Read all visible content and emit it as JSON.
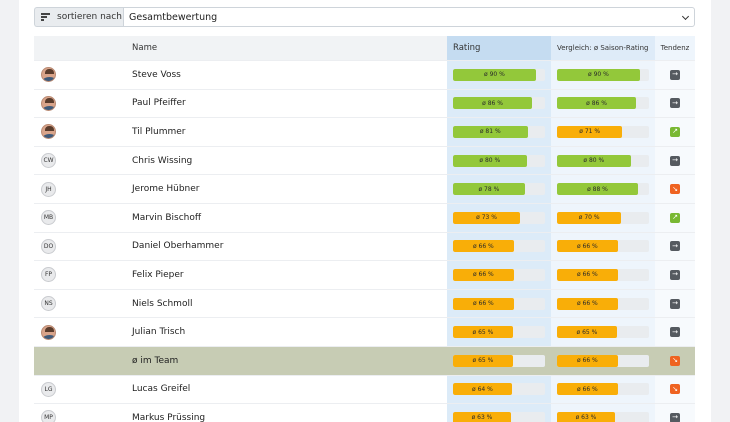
{
  "sort": {
    "label": "sortieren nach",
    "selected": "Gesamtbewertung"
  },
  "headers": {
    "name": "Name",
    "rating": "Rating",
    "compare": "Vergleich: ø Saison-Rating",
    "trend": "Tendenz"
  },
  "colors": {
    "green": "#93c83a",
    "orange": "#f9ae08",
    "trend_up": "#79b833",
    "trend_down": "#ef6321",
    "trend_flat": "#555a60"
  },
  "rows": [
    {
      "type": "player",
      "avatar": "photo",
      "initials": "",
      "name": "Steve Voss",
      "rating": 90,
      "rating_label": "ø 90 %",
      "rating_color": "green",
      "compare": 90,
      "compare_label": "ø 90 %",
      "compare_color": "green",
      "trend": "flat",
      "trend_icon": "arrow-right-icon"
    },
    {
      "type": "player",
      "avatar": "photo",
      "initials": "",
      "name": "Paul Pfeiffer",
      "rating": 86,
      "rating_label": "ø 86 %",
      "rating_color": "green",
      "compare": 86,
      "compare_label": "ø 86 %",
      "compare_color": "green",
      "trend": "flat",
      "trend_icon": "arrow-right-icon"
    },
    {
      "type": "player",
      "avatar": "photo",
      "initials": "",
      "name": "Til Plummer",
      "rating": 81,
      "rating_label": "ø 81 %",
      "rating_color": "green",
      "compare": 71,
      "compare_label": "ø 71 %",
      "compare_color": "orange",
      "trend": "up",
      "trend_icon": "arrow-up-right-icon"
    },
    {
      "type": "player",
      "avatar": "initials",
      "initials": "CW",
      "name": "Chris Wissing",
      "rating": 80,
      "rating_label": "ø 80 %",
      "rating_color": "green",
      "compare": 80,
      "compare_label": "ø 80 %",
      "compare_color": "green",
      "trend": "flat",
      "trend_icon": "arrow-right-icon"
    },
    {
      "type": "player",
      "avatar": "initials",
      "initials": "JH",
      "name": "Jerome Hübner",
      "rating": 78,
      "rating_label": "ø 78 %",
      "rating_color": "green",
      "compare": 88,
      "compare_label": "ø 88 %",
      "compare_color": "green",
      "trend": "down",
      "trend_icon": "arrow-down-right-icon"
    },
    {
      "type": "player",
      "avatar": "initials",
      "initials": "MB",
      "name": "Marvin Bischoff",
      "rating": 73,
      "rating_label": "ø 73 %",
      "rating_color": "orange",
      "compare": 70,
      "compare_label": "ø 70 %",
      "compare_color": "orange",
      "trend": "up",
      "trend_icon": "arrow-up-right-icon"
    },
    {
      "type": "player",
      "avatar": "initials",
      "initials": "DO",
      "name": "Daniel Oberhammer",
      "rating": 66,
      "rating_label": "ø 66 %",
      "rating_color": "orange",
      "compare": 66,
      "compare_label": "ø 66 %",
      "compare_color": "orange",
      "trend": "flat",
      "trend_icon": "arrow-right-icon"
    },
    {
      "type": "player",
      "avatar": "initials",
      "initials": "FP",
      "name": "Felix Pieper",
      "rating": 66,
      "rating_label": "ø 66 %",
      "rating_color": "orange",
      "compare": 66,
      "compare_label": "ø 66 %",
      "compare_color": "orange",
      "trend": "flat",
      "trend_icon": "arrow-right-icon"
    },
    {
      "type": "player",
      "avatar": "initials",
      "initials": "NS",
      "name": "Niels Schmoll",
      "rating": 66,
      "rating_label": "ø 66 %",
      "rating_color": "orange",
      "compare": 66,
      "compare_label": "ø 66 %",
      "compare_color": "orange",
      "trend": "flat",
      "trend_icon": "arrow-right-icon"
    },
    {
      "type": "player",
      "avatar": "photo",
      "initials": "",
      "name": "Julian Trisch",
      "rating": 65,
      "rating_label": "ø 65 %",
      "rating_color": "orange",
      "compare": 65,
      "compare_label": "ø 65 %",
      "compare_color": "orange",
      "trend": "flat",
      "trend_icon": "arrow-right-icon"
    },
    {
      "type": "team",
      "avatar": "none",
      "initials": "",
      "name": "ø im Team",
      "rating": 65,
      "rating_label": "ø 65 %",
      "rating_color": "orange",
      "compare": 66,
      "compare_label": "ø 66 %",
      "compare_color": "orange",
      "trend": "down",
      "trend_icon": "arrow-down-right-icon"
    },
    {
      "type": "player",
      "avatar": "initials",
      "initials": "LG",
      "name": "Lucas Greifel",
      "rating": 64,
      "rating_label": "ø 64 %",
      "rating_color": "orange",
      "compare": 66,
      "compare_label": "ø 66 %",
      "compare_color": "orange",
      "trend": "down",
      "trend_icon": "arrow-down-right-icon"
    },
    {
      "type": "player",
      "avatar": "initials",
      "initials": "MP",
      "name": "Markus Prüssing",
      "rating": 63,
      "rating_label": "ø 63 %",
      "rating_color": "orange",
      "compare": 63,
      "compare_label": "ø 63 %",
      "compare_color": "orange",
      "trend": "flat",
      "trend_icon": "arrow-right-icon"
    }
  ]
}
